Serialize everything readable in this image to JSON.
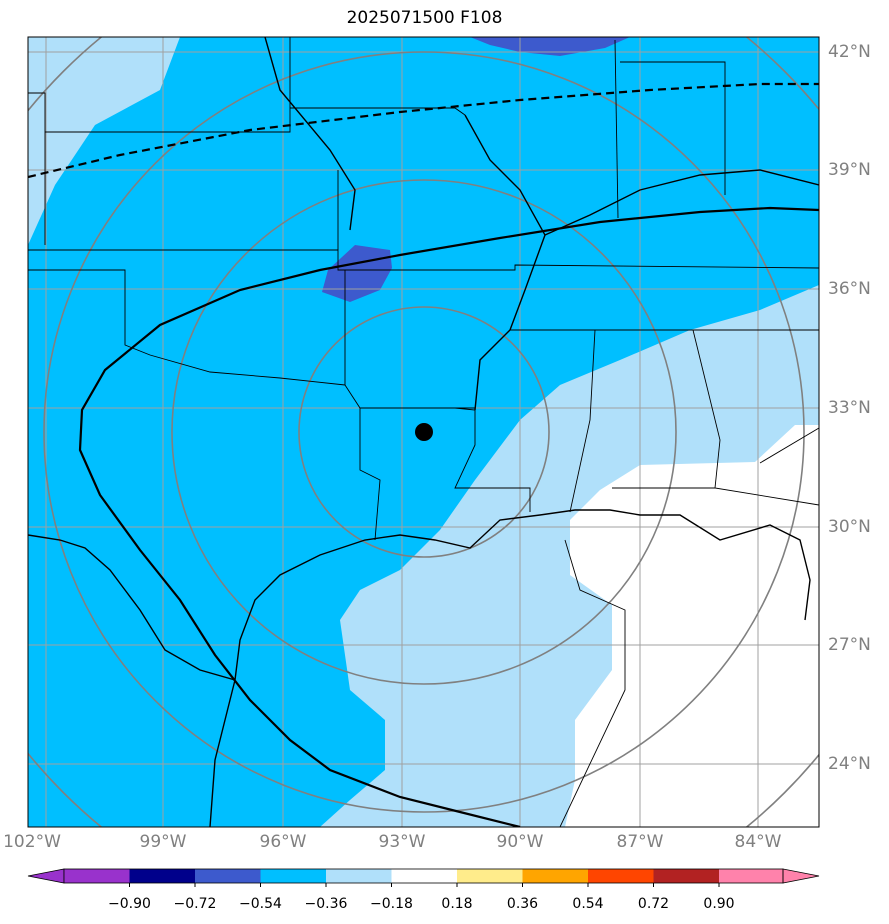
{
  "title": "2025071500 F108",
  "lon_labels": [
    "102°W",
    "99°W",
    "96°W",
    "93°W",
    "90°W",
    "87°W",
    "84°W"
  ],
  "lat_labels": [
    "42°N",
    "39°N",
    "36°N",
    "33°N",
    "30°N",
    "27°N",
    "24°N"
  ],
  "colorbar": {
    "ticks": [
      "−0.90",
      "−0.72",
      "−0.54",
      "−0.36",
      "−0.18",
      "0.18",
      "0.36",
      "0.54",
      "0.72",
      "0.90"
    ],
    "colors": [
      "#9932CC",
      "#00008B",
      "#3D5ACD",
      "#00BFFF",
      "#B0E0FA",
      "#FFFFFF",
      "#FFEC8B",
      "#FFA500",
      "#FF4500",
      "#B22222",
      "#FF82AB"
    ]
  },
  "center_marker": {
    "lon": -92.7,
    "lat": 32.6
  },
  "fill_colors": {
    "strong_negative": "#3D5ACD",
    "negative": "#00BFFF",
    "weak_negative": "#B0E0FA",
    "neutral": "#FFFFFF"
  }
}
